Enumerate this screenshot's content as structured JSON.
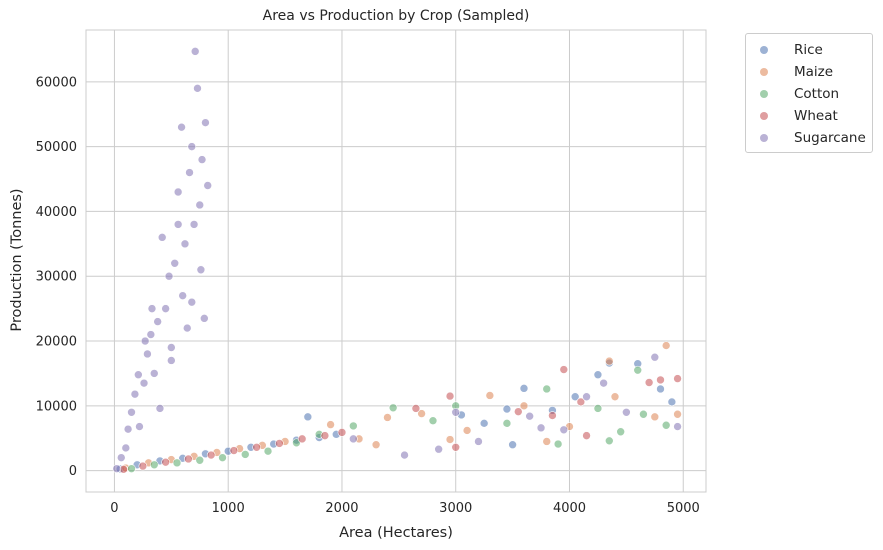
{
  "chart_data": {
    "type": "scatter",
    "title": "Area vs Production by Crop (Sampled)",
    "xlabel": "Area (Hectares)",
    "ylabel": "Production (Tonnes)",
    "xlim": [
      -250,
      5200
    ],
    "ylim": [
      -3300,
      68000
    ],
    "xticks": [
      0,
      1000,
      2000,
      3000,
      4000,
      5000
    ],
    "yticks": [
      0,
      10000,
      20000,
      30000,
      40000,
      50000,
      60000
    ],
    "grid": true,
    "legend_position": "outside-right",
    "series": [
      {
        "name": "Rice",
        "color": "#4c72b0",
        "points": [
          [
            50,
            250
          ],
          [
            200,
            900
          ],
          [
            400,
            1500
          ],
          [
            600,
            1900
          ],
          [
            800,
            2600
          ],
          [
            1000,
            3000
          ],
          [
            1200,
            3600
          ],
          [
            1400,
            4100
          ],
          [
            1600,
            4700
          ],
          [
            1800,
            5100
          ],
          [
            1950,
            5600
          ],
          [
            1700,
            8300
          ],
          [
            3050,
            8600
          ],
          [
            3250,
            7300
          ],
          [
            3600,
            12700
          ],
          [
            3450,
            9500
          ],
          [
            3500,
            4000
          ],
          [
            3850,
            9300
          ],
          [
            4050,
            11400
          ],
          [
            4250,
            14800
          ],
          [
            4600,
            16500
          ],
          [
            4800,
            12600
          ],
          [
            4900,
            10600
          ],
          [
            4350,
            16600
          ]
        ]
      },
      {
        "name": "Maize",
        "color": "#dd8452",
        "points": [
          [
            100,
            400
          ],
          [
            300,
            1200
          ],
          [
            500,
            1700
          ],
          [
            700,
            2200
          ],
          [
            900,
            2800
          ],
          [
            1100,
            3400
          ],
          [
            1300,
            3900
          ],
          [
            1500,
            4500
          ],
          [
            1900,
            7100
          ],
          [
            2150,
            4900
          ],
          [
            2300,
            4000
          ],
          [
            2400,
            8200
          ],
          [
            2700,
            8800
          ],
          [
            2950,
            4800
          ],
          [
            3300,
            11600
          ],
          [
            3600,
            10000
          ],
          [
            3800,
            4500
          ],
          [
            4000,
            6800
          ],
          [
            4350,
            16900
          ],
          [
            4850,
            19300
          ],
          [
            4750,
            8300
          ],
          [
            4950,
            8700
          ],
          [
            4400,
            11400
          ],
          [
            3100,
            6200
          ]
        ]
      },
      {
        "name": "Cotton",
        "color": "#55a868",
        "points": [
          [
            150,
            300
          ],
          [
            350,
            900
          ],
          [
            550,
            1200
          ],
          [
            750,
            1600
          ],
          [
            950,
            2000
          ],
          [
            1150,
            2500
          ],
          [
            1350,
            3000
          ],
          [
            1600,
            4300
          ],
          [
            1800,
            5600
          ],
          [
            2100,
            6900
          ],
          [
            2450,
            9700
          ],
          [
            2800,
            7700
          ],
          [
            3000,
            10000
          ],
          [
            3450,
            7300
          ],
          [
            3800,
            12600
          ],
          [
            3900,
            4100
          ],
          [
            4250,
            9600
          ],
          [
            4350,
            4600
          ],
          [
            4600,
            15500
          ],
          [
            4850,
            7000
          ],
          [
            4650,
            8700
          ],
          [
            4450,
            6000
          ]
        ]
      },
      {
        "name": "Wheat",
        "color": "#c44e52",
        "points": [
          [
            80,
            200
          ],
          [
            250,
            700
          ],
          [
            450,
            1300
          ],
          [
            650,
            1800
          ],
          [
            850,
            2400
          ],
          [
            1050,
            3100
          ],
          [
            1250,
            3600
          ],
          [
            1450,
            4200
          ],
          [
            1650,
            4900
          ],
          [
            1850,
            5400
          ],
          [
            2000,
            5900
          ],
          [
            2650,
            9600
          ],
          [
            2950,
            11500
          ],
          [
            3000,
            3600
          ],
          [
            3850,
            8500
          ],
          [
            3950,
            15600
          ],
          [
            4100,
            10600
          ],
          [
            4700,
            13600
          ],
          [
            4950,
            14200
          ],
          [
            4800,
            14000
          ],
          [
            3550,
            9100
          ],
          [
            4150,
            5400
          ]
        ]
      },
      {
        "name": "Sugarcane",
        "color": "#8172b3",
        "points": [
          [
            20,
            300
          ],
          [
            60,
            2000
          ],
          [
            100,
            3500
          ],
          [
            120,
            6400
          ],
          [
            150,
            9000
          ],
          [
            180,
            11800
          ],
          [
            220,
            6800
          ],
          [
            260,
            13500
          ],
          [
            290,
            18000
          ],
          [
            320,
            21000
          ],
          [
            350,
            15000
          ],
          [
            380,
            23000
          ],
          [
            400,
            9600
          ],
          [
            420,
            36000
          ],
          [
            450,
            25000
          ],
          [
            480,
            30000
          ],
          [
            500,
            19000
          ],
          [
            530,
            32000
          ],
          [
            560,
            43000
          ],
          [
            590,
            53000
          ],
          [
            600,
            27000
          ],
          [
            620,
            35000
          ],
          [
            640,
            22000
          ],
          [
            660,
            46000
          ],
          [
            680,
            50000
          ],
          [
            700,
            38000
          ],
          [
            710,
            64700
          ],
          [
            730,
            59000
          ],
          [
            750,
            41000
          ],
          [
            770,
            48000
          ],
          [
            800,
            53700
          ],
          [
            820,
            44000
          ],
          [
            790,
            23500
          ],
          [
            760,
            31000
          ],
          [
            680,
            26000
          ],
          [
            560,
            38000
          ],
          [
            500,
            17000
          ],
          [
            330,
            25000
          ],
          [
            270,
            20000
          ],
          [
            210,
            14800
          ],
          [
            2100,
            4900
          ],
          [
            2550,
            2400
          ],
          [
            2850,
            3300
          ],
          [
            3000,
            9000
          ],
          [
            3200,
            4500
          ],
          [
            3650,
            8400
          ],
          [
            3950,
            6300
          ],
          [
            4150,
            11400
          ],
          [
            4500,
            9000
          ],
          [
            4750,
            17500
          ],
          [
            4950,
            6800
          ],
          [
            3750,
            6600
          ],
          [
            4300,
            13500
          ]
        ]
      }
    ]
  }
}
